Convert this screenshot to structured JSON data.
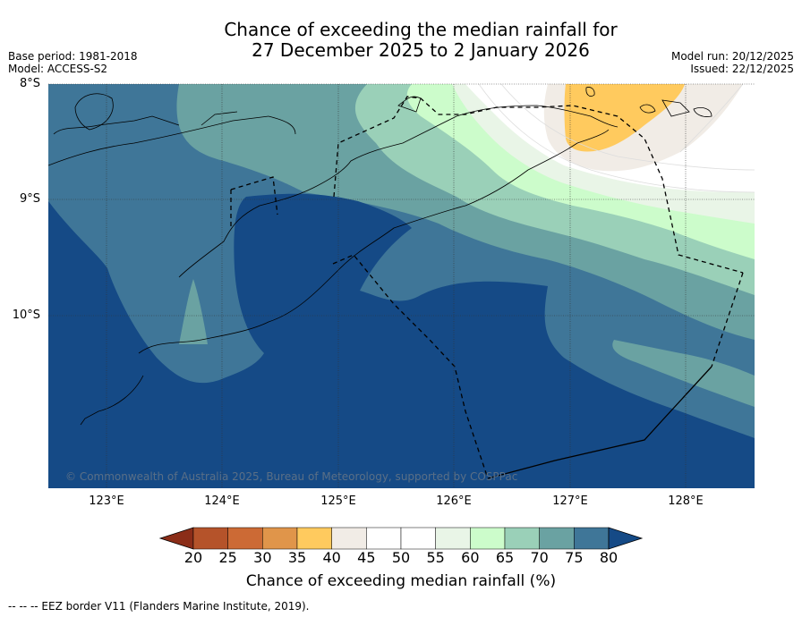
{
  "title": {
    "line1": "Chance of exceeding the median rainfall for",
    "line2": "27 December 2025 to 2 January 2026"
  },
  "meta": {
    "base_period": "Base period: 1981-2018",
    "model": "Model: ACCESS-S2",
    "model_run": "Model run: 20/12/2025",
    "issued": "Issued: 22/12/2025"
  },
  "map": {
    "latitude_labels": [
      "8°S",
      "9°S",
      "10°S"
    ],
    "longitude_labels": [
      "123°E",
      "124°E",
      "125°E",
      "126°E",
      "127°E",
      "128°E"
    ],
    "copyright": "© Commonwealth of Australia 2025, Bureau of Meteorology, supported by COSPPac",
    "border_name": "EEZ border V11"
  },
  "colorbar": {
    "ticks": [
      "20",
      "25",
      "30",
      "35",
      "40",
      "45",
      "50",
      "55",
      "60",
      "65",
      "70",
      "75",
      "80"
    ],
    "colors": [
      "#8b2d18",
      "#b5532a",
      "#cc6a35",
      "#e0954a",
      "#ffca5e",
      "#f1ece6",
      "#ffffff",
      "#ffffff",
      "#e9f5e7",
      "#ccfccb",
      "#9ad0b8",
      "#6aa2a2",
      "#3f7698",
      "#154a86"
    ],
    "label": "Chance of exceeding median rainfall (%)"
  },
  "footnote": "--  --  -- EEZ border V11 (Flanders Marine Institute, 2019)."
}
